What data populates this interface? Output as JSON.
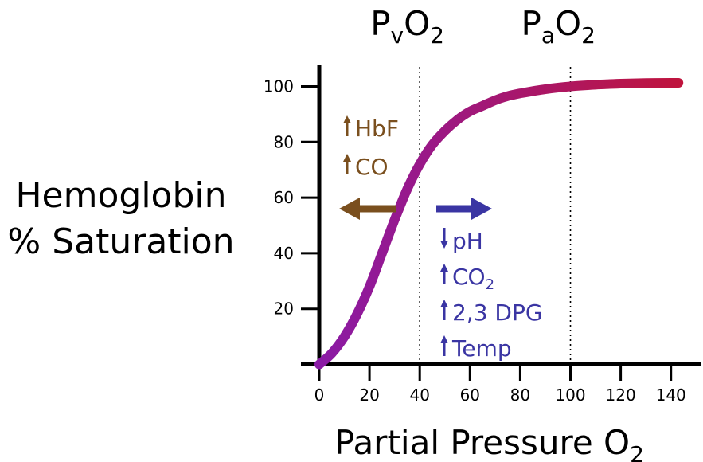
{
  "chart_data": {
    "type": "line",
    "ylabel_lines": [
      "Hemoglobin",
      "% Saturation"
    ],
    "xlabel": {
      "text": "Partial Pressure O",
      "sub": "2"
    },
    "xlim": [
      0,
      150
    ],
    "ylim": [
      0,
      105
    ],
    "xticks": [
      0,
      20,
      40,
      60,
      80,
      100,
      120,
      140
    ],
    "yticks": [
      20,
      40,
      60,
      80,
      100
    ],
    "grid": false,
    "series": [
      {
        "x": [
          0,
          5,
          10,
          15,
          20,
          25,
          30,
          35,
          40,
          45,
          50,
          55,
          60,
          65,
          70,
          75,
          80,
          90,
          100,
          110,
          120,
          130,
          140,
          143
        ],
        "y": [
          0,
          4,
          10,
          18,
          28,
          40,
          52,
          63,
          72,
          79,
          84,
          88,
          91,
          93,
          95,
          96.5,
          97.5,
          99,
          100,
          100.6,
          101,
          101.2,
          101.3,
          101.3
        ],
        "color_start": "#8a1aa6",
        "color_end": "#c0143c"
      }
    ],
    "reference_lines": [
      {
        "x": 40,
        "label": "P",
        "sub": "v",
        "suffix": "O",
        "sub2": "2"
      },
      {
        "x": 100,
        "label": "P",
        "sub": "a",
        "suffix": "O",
        "sub2": "2"
      }
    ],
    "annotations": {
      "left_shift": {
        "color": "#7a4f1e",
        "arrow": "left",
        "items": [
          {
            "dir": "up",
            "text": "HbF",
            "sub": ""
          },
          {
            "dir": "up",
            "text": "CO",
            "sub": ""
          }
        ]
      },
      "right_shift": {
        "color": "#3a35a3",
        "arrow": "right",
        "items": [
          {
            "dir": "down",
            "text": "pH",
            "sub": ""
          },
          {
            "dir": "up",
            "text": "CO",
            "sub": "2"
          },
          {
            "dir": "up",
            "text": "2,3 DPG",
            "sub": ""
          },
          {
            "dir": "up",
            "text": "Temp",
            "sub": ""
          }
        ]
      }
    }
  }
}
